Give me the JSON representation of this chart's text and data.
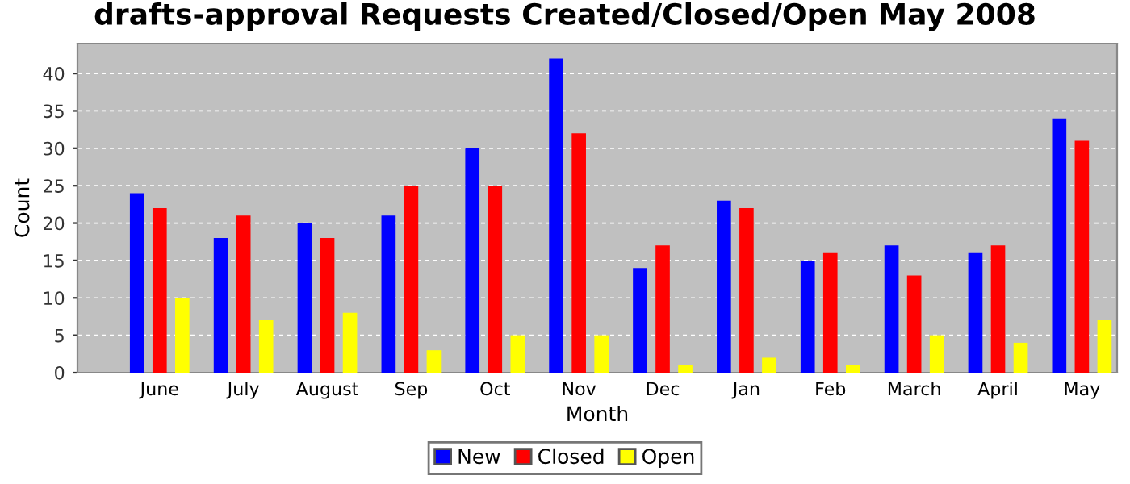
{
  "chart_data": {
    "type": "bar",
    "title": "drafts-approval Requests Created/Closed/Open May 2008",
    "xlabel": "Month",
    "ylabel": "Count",
    "categories": [
      "June",
      "July",
      "August",
      "Sep",
      "Oct",
      "Nov",
      "Dec",
      "Jan",
      "Feb",
      "March",
      "April",
      "May"
    ],
    "series": [
      {
        "name": "New",
        "color": "#0000ff",
        "values": [
          24,
          18,
          20,
          21,
          30,
          42,
          14,
          23,
          15,
          17,
          16,
          34
        ]
      },
      {
        "name": "Closed",
        "color": "#ff0000",
        "values": [
          22,
          21,
          18,
          25,
          25,
          32,
          17,
          22,
          16,
          13,
          17,
          31
        ]
      },
      {
        "name": "Open",
        "color": "#ffff00",
        "values": [
          10,
          7,
          8,
          3,
          5,
          5,
          1,
          2,
          1,
          5,
          4,
          7
        ]
      }
    ],
    "ylim": [
      0,
      44
    ],
    "yticks": [
      0,
      5,
      10,
      15,
      20,
      25,
      30,
      35,
      40
    ],
    "grid": "y",
    "legend": "bottom"
  }
}
